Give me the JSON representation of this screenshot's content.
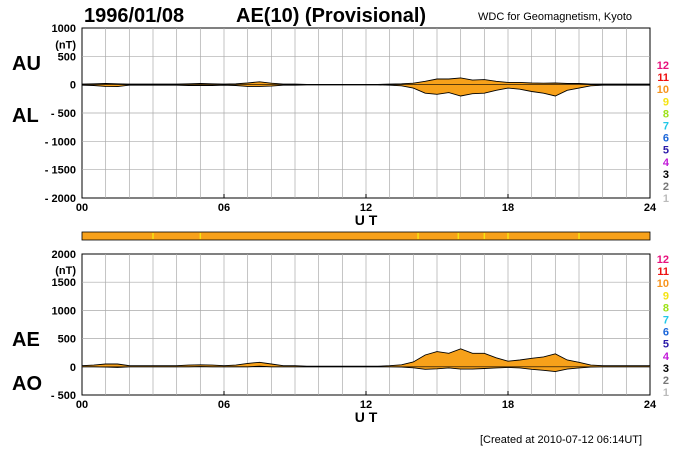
{
  "header": {
    "date": "1996/01/08",
    "title": "AE(10) (Provisional)",
    "organization": "WDC for Geomagnetism, Kyoto"
  },
  "footer": {
    "created": "[Created at 2010-07-12 06:14UT]"
  },
  "legend_levels": [
    {
      "label": "12",
      "color": "#e8127d"
    },
    {
      "label": "11",
      "color": "#ee1111"
    },
    {
      "label": "10",
      "color": "#f7941d"
    },
    {
      "label": "9",
      "color": "#f5e311"
    },
    {
      "label": "8",
      "color": "#9ee21a"
    },
    {
      "label": "7",
      "color": "#22c8e8"
    },
    {
      "label": "6",
      "color": "#1a66d9"
    },
    {
      "label": "5",
      "color": "#2a1aa8"
    },
    {
      "label": "4",
      "color": "#c21ad9"
    },
    {
      "label": "3",
      "color": "#000000"
    },
    {
      "label": "2",
      "color": "#777777"
    },
    {
      "label": "1",
      "color": "#bbbbbb"
    }
  ],
  "colors": {
    "fill": "#f7a11a",
    "outline": "#000000",
    "station_flag": "#f5e311",
    "grid": "#aaaaaa"
  },
  "chart_data": [
    {
      "type": "area",
      "series_labels": [
        "AU",
        "AL"
      ],
      "unit": "(nT)",
      "xlabel": "U T",
      "xlim": [
        0,
        24
      ],
      "x_ticks": [
        "00",
        "06",
        "12",
        "18",
        "24"
      ],
      "ylim": [
        -2000,
        1000
      ],
      "y_ticks": [
        "1000",
        "500",
        "0",
        "- 500",
        "- 1000",
        "- 1500",
        "- 2000"
      ],
      "x": [
        0,
        0.5,
        1,
        1.5,
        2,
        2.5,
        3,
        3.5,
        4,
        4.5,
        5,
        5.5,
        6,
        6.5,
        7,
        7.5,
        8,
        8.5,
        9,
        9.5,
        10,
        10.5,
        11,
        11.5,
        12,
        12.5,
        13,
        13.5,
        14,
        14.5,
        15,
        15.5,
        16,
        16.5,
        17,
        17.5,
        18,
        18.5,
        19,
        19.5,
        20,
        20.5,
        21,
        21.5,
        22,
        22.5,
        23,
        23.5,
        24
      ],
      "series": [
        {
          "name": "AU",
          "values": [
            10,
            15,
            20,
            15,
            10,
            10,
            10,
            10,
            10,
            15,
            20,
            15,
            10,
            15,
            30,
            50,
            25,
            10,
            10,
            5,
            5,
            5,
            5,
            5,
            5,
            5,
            10,
            15,
            25,
            60,
            100,
            100,
            120,
            80,
            90,
            60,
            40,
            40,
            30,
            25,
            30,
            20,
            20,
            10,
            10,
            10,
            10,
            10,
            10
          ]
        },
        {
          "name": "AL",
          "values": [
            -10,
            -15,
            -30,
            -35,
            -10,
            -10,
            -10,
            -10,
            -10,
            -15,
            -15,
            -15,
            -10,
            -15,
            -30,
            -30,
            -25,
            -10,
            -10,
            -5,
            -5,
            -5,
            -5,
            -5,
            -5,
            -5,
            -10,
            -20,
            -60,
            -150,
            -170,
            -140,
            -200,
            -160,
            -150,
            -100,
            -60,
            -80,
            -120,
            -150,
            -200,
            -100,
            -60,
            -20,
            -10,
            -10,
            -10,
            -10,
            -10
          ]
        }
      ]
    },
    {
      "type": "area",
      "series_labels": [
        "AE",
        "AO"
      ],
      "unit": "(nT)",
      "xlabel": "U T",
      "xlim": [
        0,
        24
      ],
      "x_ticks": [
        "00",
        "06",
        "12",
        "18",
        "24"
      ],
      "ylim": [
        -500,
        2000
      ],
      "y_ticks": [
        "2000",
        "1500",
        "1000",
        "500",
        "0",
        "- 500"
      ],
      "x": [
        0,
        0.5,
        1,
        1.5,
        2,
        2.5,
        3,
        3.5,
        4,
        4.5,
        5,
        5.5,
        6,
        6.5,
        7,
        7.5,
        8,
        8.5,
        9,
        9.5,
        10,
        10.5,
        11,
        11.5,
        12,
        12.5,
        13,
        13.5,
        14,
        14.5,
        15,
        15.5,
        16,
        16.5,
        17,
        17.5,
        18,
        18.5,
        19,
        19.5,
        20,
        20.5,
        21,
        21.5,
        22,
        22.5,
        23,
        23.5,
        24
      ],
      "series": [
        {
          "name": "AE",
          "values": [
            20,
            30,
            50,
            50,
            20,
            20,
            20,
            20,
            20,
            30,
            35,
            30,
            20,
            30,
            60,
            80,
            50,
            20,
            20,
            10,
            10,
            10,
            10,
            10,
            10,
            10,
            20,
            35,
            85,
            210,
            270,
            240,
            320,
            240,
            240,
            160,
            100,
            120,
            150,
            175,
            230,
            120,
            80,
            30,
            20,
            20,
            20,
            20,
            20
          ]
        },
        {
          "name": "AO",
          "values": [
            0,
            0,
            -5,
            -10,
            0,
            0,
            0,
            0,
            0,
            0,
            3,
            0,
            0,
            0,
            0,
            10,
            0,
            0,
            0,
            0,
            0,
            0,
            0,
            0,
            0,
            0,
            0,
            -3,
            -18,
            -45,
            -35,
            -20,
            -40,
            -40,
            -30,
            -20,
            -10,
            -20,
            -45,
            -62,
            -85,
            -40,
            -20,
            -5,
            0,
            0,
            0,
            0,
            0
          ]
        }
      ]
    }
  ]
}
